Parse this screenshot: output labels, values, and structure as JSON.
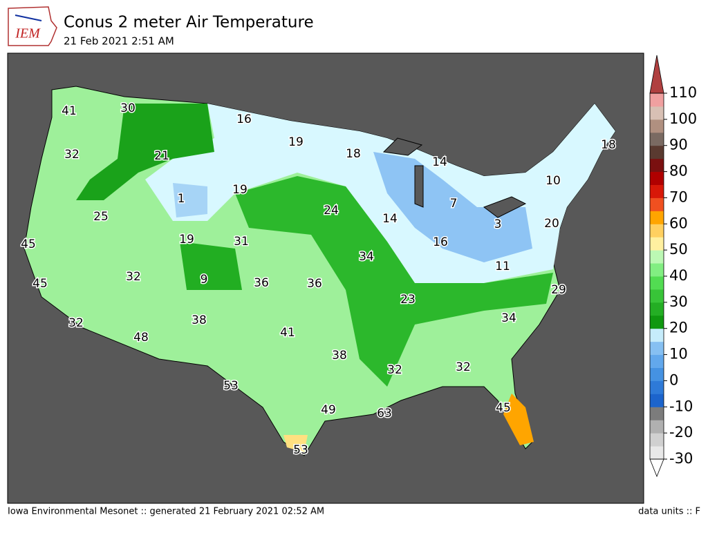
{
  "header": {
    "logo": "IEM",
    "title": "Conus 2 meter Air Temperature",
    "subtitle": "21 Feb 2021 2:51 AM"
  },
  "map": {
    "labels": [
      41,
      30,
      16,
      19,
      18,
      14,
      18,
      32,
      21,
      19,
      1,
      10,
      25,
      24,
      14,
      7,
      3,
      20,
      45,
      19,
      31,
      16,
      34,
      11,
      45,
      32,
      9,
      36,
      36,
      29,
      23,
      34,
      38,
      41,
      32,
      48,
      38,
      32,
      32,
      53,
      45,
      49,
      63,
      53
    ]
  },
  "colorbar": {
    "ticks": [
      -30,
      -20,
      -10,
      0,
      10,
      20,
      30,
      40,
      50,
      60,
      70,
      80,
      90,
      100,
      110
    ],
    "colors": [
      "#e8e8e8",
      "#d0d0d0",
      "#b0b0b0",
      "#7c7c7c",
      "#1c64cc",
      "#2e7ad8",
      "#4592e2",
      "#62a8ec",
      "#86c0f2",
      "#c6ecfb",
      "#0f980f",
      "#24ae24",
      "#38c438",
      "#52dc52",
      "#82ee82",
      "#bcf8b4",
      "#fff0a0",
      "#ffd060",
      "#ffa500",
      "#f05020",
      "#d81808",
      "#b00000",
      "#7a1010",
      "#5a3a30",
      "#7a6a62",
      "#b09080",
      "#d8c0b4",
      "#f0a0a0"
    ]
  },
  "footer": {
    "left": "Iowa Environmental Mesonet :: generated 21 February 2021 02:52 AM",
    "right": "data units :: F"
  }
}
